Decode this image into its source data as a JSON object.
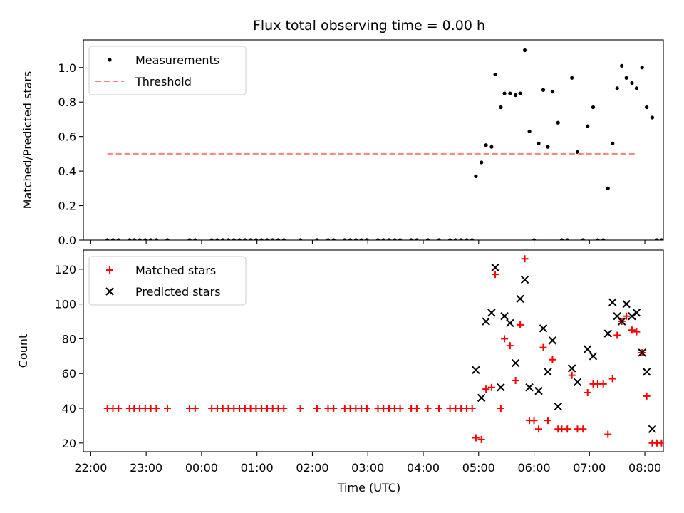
{
  "chart_data": [
    {
      "type": "scatter",
      "title": "Flux total observing time = 0.00 h",
      "ylabel": "Matched/Predicted stars",
      "xlabel": "",
      "xlim": [
        "2020-01-01 21:52",
        "2020-01-02 08:20"
      ],
      "ylim": [
        0,
        1.16
      ],
      "yticks": [
        0.0,
        0.2,
        0.4,
        0.6,
        0.8,
        1.0
      ],
      "ytick_labels": [
        "0.0",
        "0.2",
        "0.4",
        "0.6",
        "0.8",
        "1.0"
      ],
      "legend": {
        "placement": "upper-left",
        "entries": [
          "Measurements",
          "Threshold"
        ]
      },
      "series": [
        {
          "name": "Measurements",
          "marker": "dot",
          "color": "#000000",
          "points": [
            [
              "2020-01-01 22:18",
              0
            ],
            [
              "2020-01-01 22:24",
              0
            ],
            [
              "2020-01-01 22:30",
              0
            ],
            [
              "2020-01-01 22:42",
              0
            ],
            [
              "2020-01-01 22:47",
              0
            ],
            [
              "2020-01-01 22:53",
              0
            ],
            [
              "2020-01-01 22:59",
              0
            ],
            [
              "2020-01-01 23:05",
              0
            ],
            [
              "2020-01-01 23:11",
              0
            ],
            [
              "2020-01-01 23:23",
              0
            ],
            [
              "2020-01-01 23:47",
              0
            ],
            [
              "2020-01-01 23:53",
              0
            ],
            [
              "2020-01-02 00:11",
              0
            ],
            [
              "2020-01-02 00:17",
              0
            ],
            [
              "2020-01-02 00:23",
              0
            ],
            [
              "2020-01-02 00:29",
              0
            ],
            [
              "2020-01-02 00:35",
              0
            ],
            [
              "2020-01-02 00:41",
              0
            ],
            [
              "2020-01-02 00:47",
              0
            ],
            [
              "2020-01-02 00:53",
              0
            ],
            [
              "2020-01-02 00:59",
              0
            ],
            [
              "2020-01-02 01:05",
              0
            ],
            [
              "2020-01-02 01:11",
              0
            ],
            [
              "2020-01-02 01:17",
              0
            ],
            [
              "2020-01-02 01:23",
              0
            ],
            [
              "2020-01-02 01:29",
              0
            ],
            [
              "2020-01-02 01:47",
              0
            ],
            [
              "2020-01-02 02:05",
              0
            ],
            [
              "2020-01-02 02:17",
              0
            ],
            [
              "2020-01-02 02:23",
              0
            ],
            [
              "2020-01-02 02:35",
              0
            ],
            [
              "2020-01-02 02:41",
              0
            ],
            [
              "2020-01-02 02:47",
              0
            ],
            [
              "2020-01-02 02:53",
              0
            ],
            [
              "2020-01-02 02:59",
              0
            ],
            [
              "2020-01-02 03:11",
              0
            ],
            [
              "2020-01-02 03:17",
              0
            ],
            [
              "2020-01-02 03:23",
              0
            ],
            [
              "2020-01-02 03:29",
              0
            ],
            [
              "2020-01-02 03:35",
              0
            ],
            [
              "2020-01-02 03:47",
              0
            ],
            [
              "2020-01-02 03:53",
              0
            ],
            [
              "2020-01-02 04:05",
              0
            ],
            [
              "2020-01-02 04:17",
              0
            ],
            [
              "2020-01-02 04:29",
              0
            ],
            [
              "2020-01-02 04:35",
              0
            ],
            [
              "2020-01-02 04:41",
              0
            ],
            [
              "2020-01-02 04:47",
              0
            ],
            [
              "2020-01-02 04:53",
              0
            ],
            [
              "2020-01-02 04:57",
              0.37
            ],
            [
              "2020-01-02 05:03",
              0.45
            ],
            [
              "2020-01-02 05:08",
              0.55
            ],
            [
              "2020-01-02 05:14",
              0.54
            ],
            [
              "2020-01-02 05:18",
              0.96
            ],
            [
              "2020-01-02 05:24",
              0.77
            ],
            [
              "2020-01-02 05:28",
              0.85
            ],
            [
              "2020-01-02 05:34",
              0.85
            ],
            [
              "2020-01-02 05:40",
              0.84
            ],
            [
              "2020-01-02 05:45",
              0.85
            ],
            [
              "2020-01-02 05:50",
              1.1
            ],
            [
              "2020-01-02 05:55",
              0.63
            ],
            [
              "2020-01-02 06:00",
              0
            ],
            [
              "2020-01-02 06:05",
              0.56
            ],
            [
              "2020-01-02 06:10",
              0.87
            ],
            [
              "2020-01-02 06:15",
              0.54
            ],
            [
              "2020-01-02 06:20",
              0.86
            ],
            [
              "2020-01-02 06:26",
              0.68
            ],
            [
              "2020-01-02 06:30",
              0
            ],
            [
              "2020-01-02 06:36",
              0
            ],
            [
              "2020-01-02 06:41",
              0.94
            ],
            [
              "2020-01-02 06:47",
              0.51
            ],
            [
              "2020-01-02 06:53",
              0
            ],
            [
              "2020-01-02 06:58",
              0.66
            ],
            [
              "2020-01-02 07:04",
              0.77
            ],
            [
              "2020-01-02 07:09",
              0
            ],
            [
              "2020-01-02 07:15",
              0
            ],
            [
              "2020-01-02 07:20",
              0.3
            ],
            [
              "2020-01-02 07:25",
              0.56
            ],
            [
              "2020-01-02 07:30",
              0.88
            ],
            [
              "2020-01-02 07:35",
              1.01
            ],
            [
              "2020-01-02 07:40",
              0.94
            ],
            [
              "2020-01-02 07:46",
              0.91
            ],
            [
              "2020-01-02 07:51",
              0.88
            ],
            [
              "2020-01-02 07:57",
              1.0
            ],
            [
              "2020-01-02 08:02",
              0.77
            ],
            [
              "2020-01-02 08:08",
              0.71
            ],
            [
              "2020-01-02 08:13",
              0
            ],
            [
              "2020-01-02 08:18",
              0
            ],
            [
              "2020-01-02 08:24",
              0
            ]
          ]
        },
        {
          "name": "Threshold",
          "line_style": "dashed",
          "color": "#ff7f7f",
          "points": [
            [
              "2020-01-01 22:18",
              0.5
            ],
            [
              "2020-01-02 07:50",
              0.5
            ]
          ]
        }
      ]
    },
    {
      "type": "scatter",
      "title": "",
      "ylabel": "Count",
      "xlabel": "Time (UTC)",
      "xlim": [
        "2020-01-01 21:52",
        "2020-01-02 08:20"
      ],
      "ylim": [
        15,
        131
      ],
      "yticks": [
        20,
        40,
        60,
        80,
        100,
        120
      ],
      "ytick_labels": [
        "20",
        "40",
        "60",
        "80",
        "100",
        "120"
      ],
      "xticks": [
        "2020-01-01 22:00",
        "2020-01-01 23:00",
        "2020-01-02 00:00",
        "2020-01-02 01:00",
        "2020-01-02 02:00",
        "2020-01-02 03:00",
        "2020-01-02 04:00",
        "2020-01-02 05:00",
        "2020-01-02 06:00",
        "2020-01-02 07:00",
        "2020-01-02 08:00"
      ],
      "xtick_labels": [
        "22:00",
        "23:00",
        "00:00",
        "01:00",
        "02:00",
        "03:00",
        "04:00",
        "05:00",
        "06:00",
        "07:00",
        "08:00"
      ],
      "legend": {
        "placement": "upper-left",
        "entries": [
          "Matched stars",
          "Predicted stars"
        ]
      },
      "series": [
        {
          "name": "Matched stars",
          "marker": "plus",
          "color": "#ff0000",
          "points": [
            [
              "2020-01-01 22:18",
              40
            ],
            [
              "2020-01-01 22:24",
              40
            ],
            [
              "2020-01-01 22:30",
              40
            ],
            [
              "2020-01-01 22:42",
              40
            ],
            [
              "2020-01-01 22:47",
              40
            ],
            [
              "2020-01-01 22:53",
              40
            ],
            [
              "2020-01-01 22:59",
              40
            ],
            [
              "2020-01-01 23:05",
              40
            ],
            [
              "2020-01-01 23:11",
              40
            ],
            [
              "2020-01-01 23:23",
              40
            ],
            [
              "2020-01-01 23:47",
              40
            ],
            [
              "2020-01-01 23:53",
              40
            ],
            [
              "2020-01-02 00:11",
              40
            ],
            [
              "2020-01-02 00:17",
              40
            ],
            [
              "2020-01-02 00:23",
              40
            ],
            [
              "2020-01-02 00:29",
              40
            ],
            [
              "2020-01-02 00:35",
              40
            ],
            [
              "2020-01-02 00:41",
              40
            ],
            [
              "2020-01-02 00:47",
              40
            ],
            [
              "2020-01-02 00:53",
              40
            ],
            [
              "2020-01-02 00:59",
              40
            ],
            [
              "2020-01-02 01:05",
              40
            ],
            [
              "2020-01-02 01:11",
              40
            ],
            [
              "2020-01-02 01:17",
              40
            ],
            [
              "2020-01-02 01:23",
              40
            ],
            [
              "2020-01-02 01:29",
              40
            ],
            [
              "2020-01-02 01:47",
              40
            ],
            [
              "2020-01-02 02:05",
              40
            ],
            [
              "2020-01-02 02:17",
              40
            ],
            [
              "2020-01-02 02:23",
              40
            ],
            [
              "2020-01-02 02:35",
              40
            ],
            [
              "2020-01-02 02:41",
              40
            ],
            [
              "2020-01-02 02:47",
              40
            ],
            [
              "2020-01-02 02:53",
              40
            ],
            [
              "2020-01-02 02:59",
              40
            ],
            [
              "2020-01-02 03:11",
              40
            ],
            [
              "2020-01-02 03:17",
              40
            ],
            [
              "2020-01-02 03:23",
              40
            ],
            [
              "2020-01-02 03:29",
              40
            ],
            [
              "2020-01-02 03:35",
              40
            ],
            [
              "2020-01-02 03:47",
              40
            ],
            [
              "2020-01-02 03:53",
              40
            ],
            [
              "2020-01-02 04:05",
              40
            ],
            [
              "2020-01-02 04:17",
              40
            ],
            [
              "2020-01-02 04:29",
              40
            ],
            [
              "2020-01-02 04:35",
              40
            ],
            [
              "2020-01-02 04:41",
              40
            ],
            [
              "2020-01-02 04:47",
              40
            ],
            [
              "2020-01-02 04:53",
              40
            ],
            [
              "2020-01-02 04:57",
              23
            ],
            [
              "2020-01-02 05:03",
              22
            ],
            [
              "2020-01-02 05:08",
              51
            ],
            [
              "2020-01-02 05:14",
              52
            ],
            [
              "2020-01-02 05:18",
              117
            ],
            [
              "2020-01-02 05:24",
              40
            ],
            [
              "2020-01-02 05:28",
              80
            ],
            [
              "2020-01-02 05:34",
              76
            ],
            [
              "2020-01-02 05:40",
              56
            ],
            [
              "2020-01-02 05:45",
              88
            ],
            [
              "2020-01-02 05:50",
              126
            ],
            [
              "2020-01-02 05:55",
              33
            ],
            [
              "2020-01-02 06:00",
              33
            ],
            [
              "2020-01-02 06:05",
              28
            ],
            [
              "2020-01-02 06:10",
              75
            ],
            [
              "2020-01-02 06:15",
              33
            ],
            [
              "2020-01-02 06:20",
              68
            ],
            [
              "2020-01-02 06:26",
              28
            ],
            [
              "2020-01-02 06:30",
              28
            ],
            [
              "2020-01-02 06:36",
              28
            ],
            [
              "2020-01-02 06:41",
              59
            ],
            [
              "2020-01-02 06:47",
              28
            ],
            [
              "2020-01-02 06:53",
              28
            ],
            [
              "2020-01-02 06:58",
              49
            ],
            [
              "2020-01-02 07:04",
              54
            ],
            [
              "2020-01-02 07:09",
              54
            ],
            [
              "2020-01-02 07:15",
              54
            ],
            [
              "2020-01-02 07:20",
              25
            ],
            [
              "2020-01-02 07:25",
              57
            ],
            [
              "2020-01-02 07:30",
              82
            ],
            [
              "2020-01-02 07:35",
              90
            ],
            [
              "2020-01-02 07:40",
              93
            ],
            [
              "2020-01-02 07:46",
              85
            ],
            [
              "2020-01-02 07:51",
              84
            ],
            [
              "2020-01-02 07:57",
              72
            ],
            [
              "2020-01-02 08:02",
              47
            ],
            [
              "2020-01-02 08:08",
              20
            ],
            [
              "2020-01-02 08:13",
              20
            ],
            [
              "2020-01-02 08:18",
              20
            ],
            [
              "2020-01-02 08:24",
              20
            ]
          ]
        },
        {
          "name": "Predicted stars",
          "marker": "x",
          "color": "#000000",
          "points": [
            [
              "2020-01-02 04:57",
              62
            ],
            [
              "2020-01-02 05:03",
              46
            ],
            [
              "2020-01-02 05:08",
              90
            ],
            [
              "2020-01-02 05:14",
              95
            ],
            [
              "2020-01-02 05:18",
              121
            ],
            [
              "2020-01-02 05:24",
              52
            ],
            [
              "2020-01-02 05:28",
              93
            ],
            [
              "2020-01-02 05:34",
              89
            ],
            [
              "2020-01-02 05:40",
              66
            ],
            [
              "2020-01-02 05:45",
              103
            ],
            [
              "2020-01-02 05:50",
              114
            ],
            [
              "2020-01-02 05:55",
              52
            ],
            [
              "2020-01-02 06:05",
              50
            ],
            [
              "2020-01-02 06:10",
              86
            ],
            [
              "2020-01-02 06:15",
              61
            ],
            [
              "2020-01-02 06:20",
              79
            ],
            [
              "2020-01-02 06:26",
              41
            ],
            [
              "2020-01-02 06:41",
              63
            ],
            [
              "2020-01-02 06:47",
              55
            ],
            [
              "2020-01-02 06:58",
              74
            ],
            [
              "2020-01-02 07:04",
              70
            ],
            [
              "2020-01-02 07:20",
              83
            ],
            [
              "2020-01-02 07:25",
              101
            ],
            [
              "2020-01-02 07:30",
              93
            ],
            [
              "2020-01-02 07:35",
              90
            ],
            [
              "2020-01-02 07:40",
              100
            ],
            [
              "2020-01-02 07:46",
              93
            ],
            [
              "2020-01-02 07:51",
              95
            ],
            [
              "2020-01-02 07:57",
              72
            ],
            [
              "2020-01-02 08:02",
              61
            ],
            [
              "2020-01-02 08:08",
              28
            ]
          ]
        }
      ]
    }
  ]
}
